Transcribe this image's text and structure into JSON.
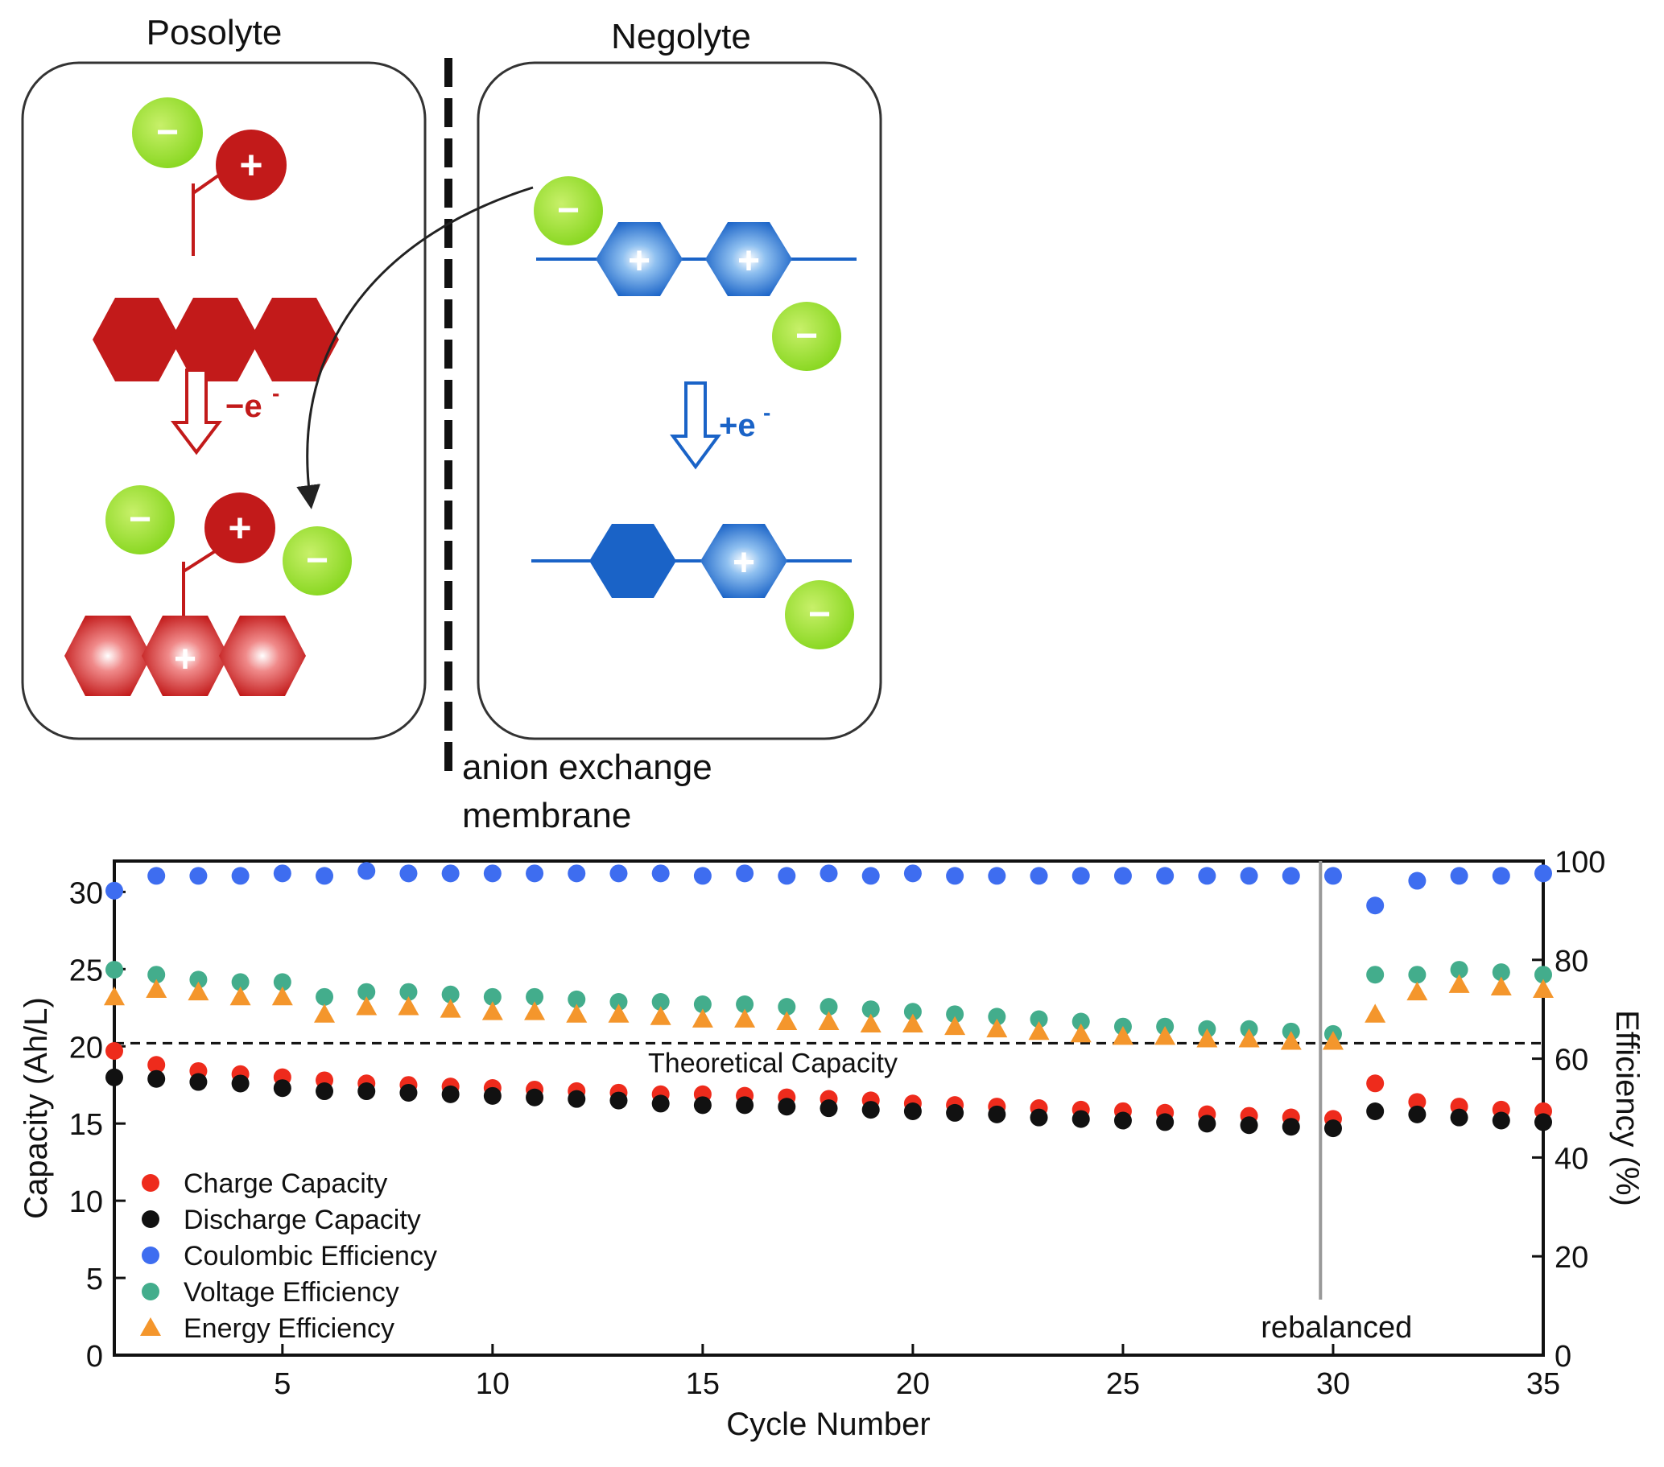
{
  "diagram": {
    "posolyte_label": "Posolyte",
    "negolyte_label": "Negolyte",
    "minus_sign": "−",
    "plus_sign": "+",
    "posolyte_step": "−e",
    "posolyte_step_sup": "-",
    "negolyte_step": "+e",
    "negolyte_step_sup": "-",
    "membrane_line1": "anion exchange",
    "membrane_line2": "membrane"
  },
  "colors": {
    "charge": "#ee2b1c",
    "discharge": "#111111",
    "coulombic": "#3e6df0",
    "voltage": "#43ad8c",
    "energy": "#f4962c",
    "posolyte": "#c21a1a",
    "negolyte": "#1a63c7",
    "anion": "#96dd2e"
  },
  "chart_data": {
    "type": "scatter",
    "title": "",
    "xlabel": "Cycle Number",
    "ylabel_left": "Capacity (Ah/L)",
    "ylabel_right": "Efficiency (%)",
    "xlim": [
      1,
      35
    ],
    "ylim_left": [
      0,
      32
    ],
    "ylim_right": [
      0,
      100
    ],
    "x_ticks": [
      5,
      10,
      15,
      20,
      25,
      30,
      35
    ],
    "y_ticks_left": [
      0,
      5,
      10,
      15,
      20,
      25,
      30
    ],
    "y_ticks_right": [
      0,
      20,
      40,
      60,
      80,
      100
    ],
    "x": [
      1,
      2,
      3,
      4,
      5,
      6,
      7,
      8,
      9,
      10,
      11,
      12,
      13,
      14,
      15,
      16,
      17,
      18,
      19,
      20,
      21,
      22,
      23,
      24,
      25,
      26,
      27,
      28,
      29,
      30,
      31,
      32,
      33,
      34,
      35
    ],
    "series": [
      {
        "name": "Charge Capacity",
        "axis": "left",
        "marker": "circle",
        "values": [
          19.7,
          18.8,
          18.4,
          18.2,
          18.0,
          17.8,
          17.6,
          17.5,
          17.4,
          17.3,
          17.2,
          17.1,
          17.0,
          16.9,
          16.9,
          16.8,
          16.7,
          16.6,
          16.5,
          16.3,
          16.2,
          16.1,
          16.0,
          15.9,
          15.8,
          15.7,
          15.6,
          15.5,
          15.4,
          15.3,
          17.6,
          16.4,
          16.1,
          15.9,
          15.8
        ]
      },
      {
        "name": "Discharge Capacity",
        "axis": "left",
        "marker": "circle",
        "values": [
          18.2,
          18.1,
          17.9,
          17.8,
          17.5,
          17.3,
          17.3,
          17.2,
          17.1,
          17.0,
          16.9,
          16.8,
          16.7,
          16.5,
          16.4,
          16.4,
          16.3,
          16.2,
          16.1,
          16.0,
          15.9,
          15.8,
          15.6,
          15.5,
          15.4,
          15.3,
          15.2,
          15.1,
          15.0,
          14.9,
          16.0,
          15.8,
          15.6,
          15.4,
          15.3
        ]
      },
      {
        "name": "Coulombic Efficiency",
        "axis": "right",
        "marker": "circle",
        "values": [
          94,
          97,
          97,
          97,
          97.5,
          97,
          98,
          97.5,
          97.5,
          97.5,
          97.5,
          97.5,
          97.5,
          97.5,
          97,
          97.5,
          97,
          97.5,
          97,
          97.5,
          97,
          97,
          97,
          97,
          97,
          97,
          97,
          97,
          97,
          97,
          91,
          96,
          97,
          97,
          97.5
        ]
      },
      {
        "name": "Voltage Efficiency",
        "axis": "right",
        "marker": "circle",
        "values": [
          78,
          77,
          76,
          75.5,
          75.5,
          72.5,
          73.5,
          73.5,
          73,
          72.5,
          72.5,
          72,
          71.5,
          71.5,
          71,
          71,
          70.5,
          70.5,
          70,
          69.5,
          69,
          68.5,
          68,
          67.5,
          66.5,
          66.5,
          66,
          66,
          65.5,
          65,
          77,
          77,
          78,
          77.5,
          77
        ]
      },
      {
        "name": "Energy Efficiency",
        "axis": "right",
        "marker": "triangle",
        "values": [
          72.5,
          74,
          73.5,
          72.5,
          72.5,
          69,
          70.5,
          70.5,
          70,
          69.5,
          69.5,
          69,
          69,
          68.5,
          68,
          68,
          67.5,
          67.5,
          67,
          67,
          66.5,
          66,
          65.5,
          65,
          64.5,
          64.5,
          64,
          64,
          63.5,
          63.5,
          69,
          73.5,
          75,
          74.5,
          74
        ]
      }
    ],
    "annotations": {
      "theoretical_capacity": {
        "value": 20.2,
        "label": "Theoretical Capacity"
      },
      "rebalanced": {
        "x": 29.7,
        "label": "rebalanced"
      }
    },
    "legend_position": "bottom-left",
    "grid": false
  }
}
